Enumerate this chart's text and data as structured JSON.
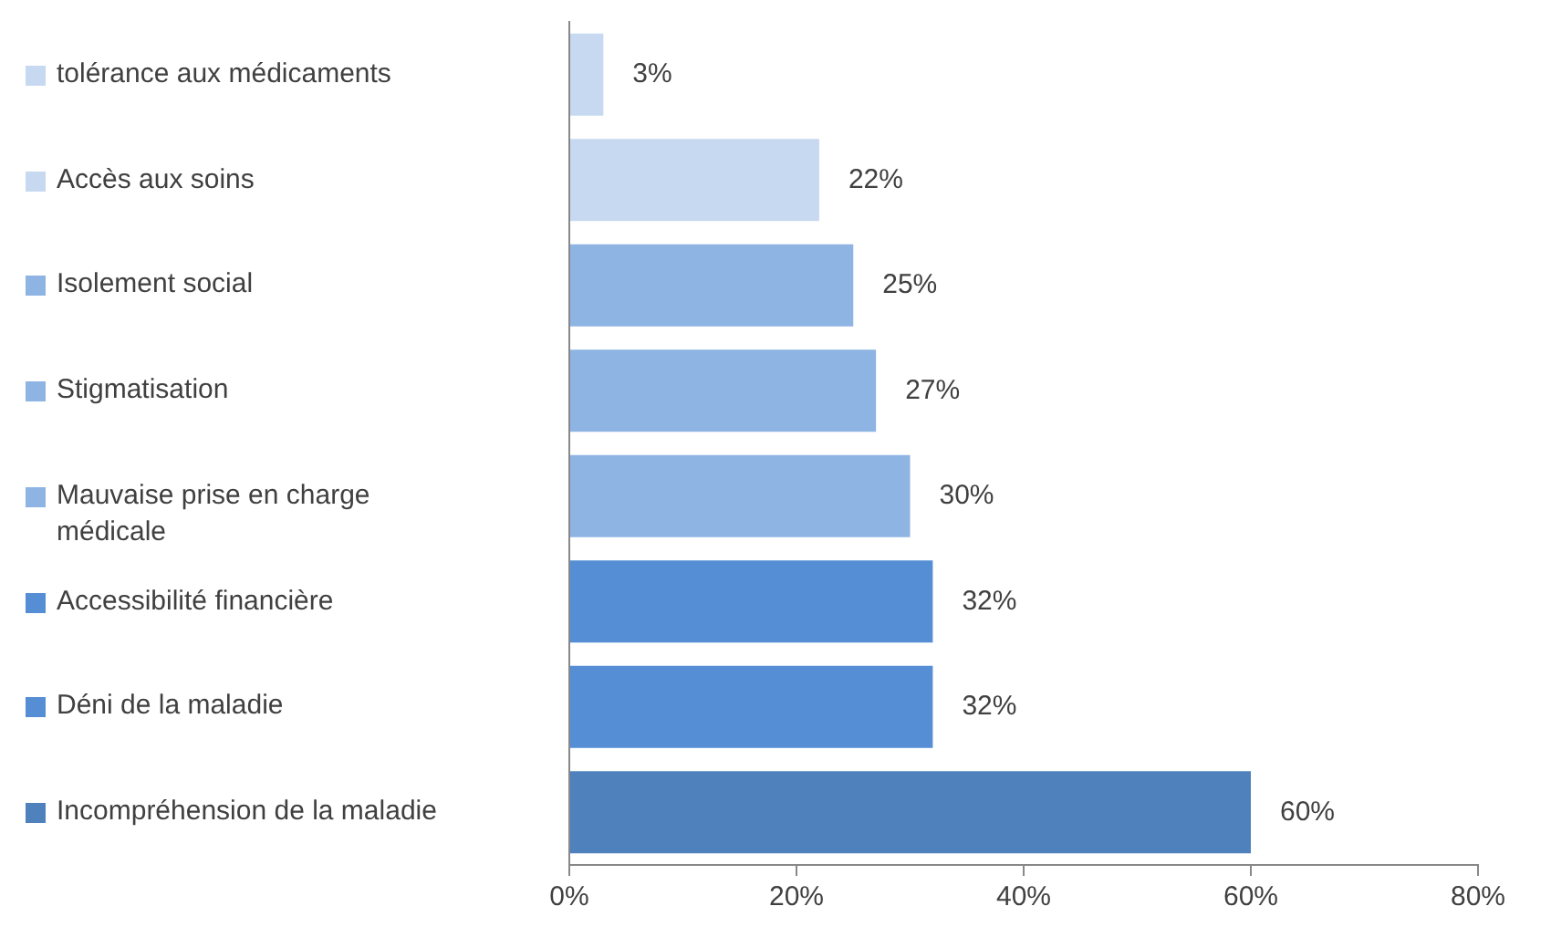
{
  "chart_data": {
    "type": "bar",
    "orientation": "horizontal",
    "categories": [
      "tolérance aux médicaments",
      "Accès aux soins",
      "Isolement social",
      "Stigmatisation",
      "Mauvaise prise en charge médicale",
      "Accessibilité financière",
      "Déni de la maladie",
      "Incompréhension de la maladie"
    ],
    "values": [
      3,
      22,
      25,
      27,
      30,
      32,
      32,
      60
    ],
    "colors": [
      "#c6d9f1",
      "#c6d9f1",
      "#8eb4e3",
      "#8eb4e3",
      "#8eb4e3",
      "#558ed5",
      "#558ed5",
      "#4f81bd"
    ],
    "value_labels": [
      "3%",
      "22%",
      "25%",
      "27%",
      "30%",
      "32%",
      "32%",
      "60%"
    ],
    "xlim": [
      0,
      80
    ],
    "xticks": [
      {
        "value": 0,
        "label": "0%"
      },
      {
        "value": 20,
        "label": "20%"
      },
      {
        "value": 40,
        "label": "40%"
      },
      {
        "value": 60,
        "label": "60%"
      },
      {
        "value": 80,
        "label": "80%"
      }
    ],
    "grid": false,
    "legend": false
  }
}
